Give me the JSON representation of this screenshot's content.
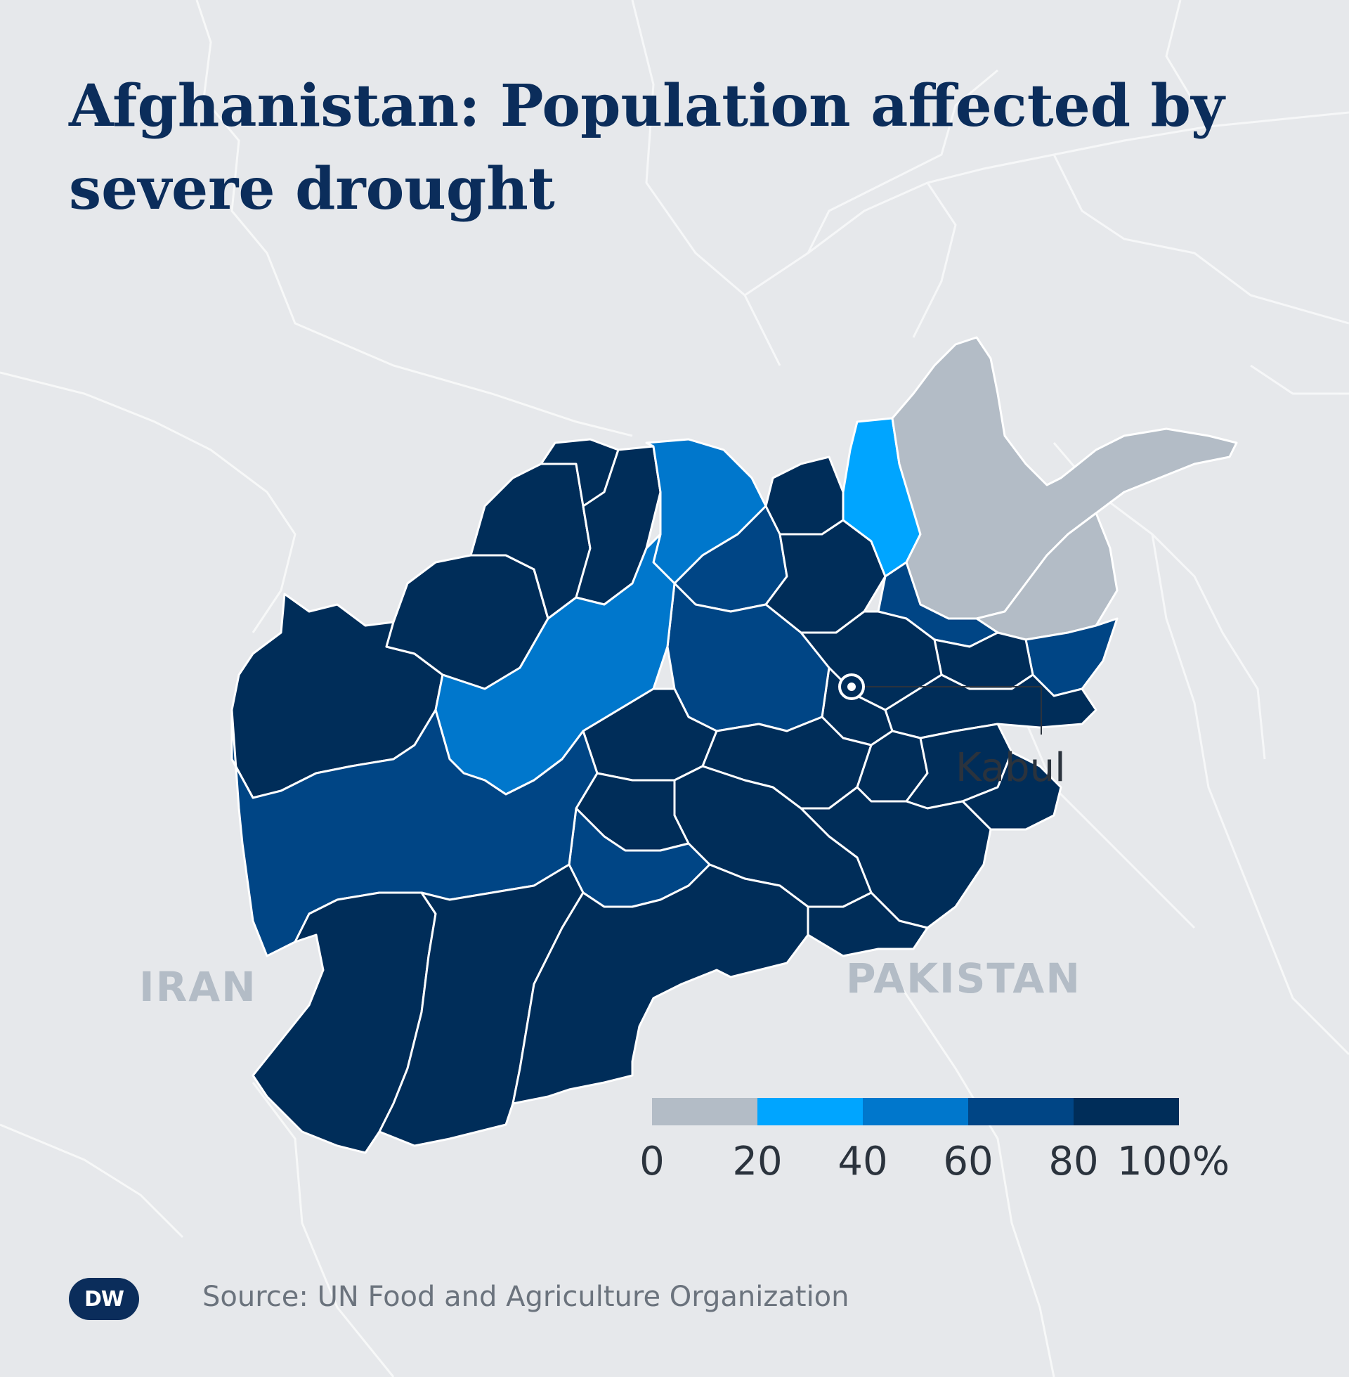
{
  "title": "Afghanistan: Population affected by severe drought",
  "labels": {
    "iran": "IRAN",
    "pakistan": "PAKISTAN",
    "kabul": "Kabul"
  },
  "legend": {
    "ticks": [
      "0",
      "20",
      "40",
      "60",
      "80",
      "100%"
    ],
    "classes": [
      {
        "range": "0-20",
        "color": "#b3bcc6"
      },
      {
        "range": "20-40",
        "color": "#00a5ff"
      },
      {
        "range": "40-60",
        "color": "#0077cc"
      },
      {
        "range": "60-80",
        "color": "#004585"
      },
      {
        "range": "80-100",
        "color": "#002d59"
      }
    ]
  },
  "source": "Source: UN Food and Agriculture Organization",
  "logo": "DW",
  "colors": {
    "title": "#0b2d5b",
    "background": "#e6e8eb",
    "border": "#ffffff"
  }
}
